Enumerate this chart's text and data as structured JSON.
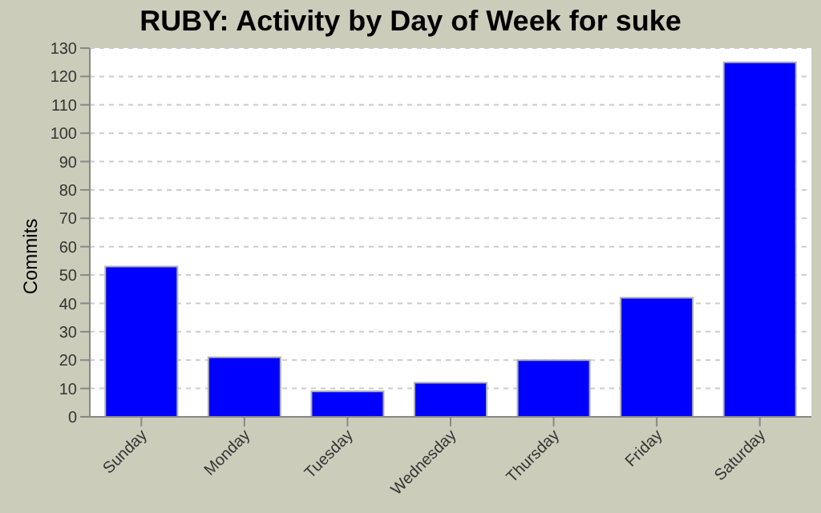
{
  "chart_data": {
    "type": "bar",
    "title": "RUBY: Activity by Day of Week for suke",
    "ylabel": "Commits",
    "categories": [
      "Sunday",
      "Monday",
      "Tuesday",
      "Wednesday",
      "Thursday",
      "Friday",
      "Saturday"
    ],
    "values": [
      53,
      21,
      9,
      12,
      20,
      42,
      125
    ],
    "color": "#0000ff",
    "ylim": [
      0,
      130
    ],
    "yticks": [
      0,
      10,
      20,
      30,
      40,
      50,
      60,
      70,
      80,
      90,
      100,
      110,
      120,
      130
    ],
    "grid": "y"
  }
}
